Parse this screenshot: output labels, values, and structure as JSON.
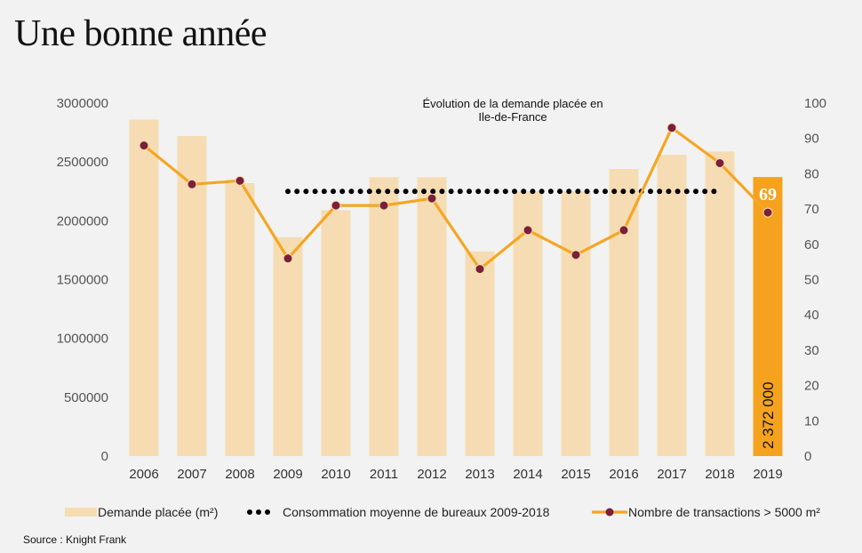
{
  "page": {
    "title": "Une bonne année",
    "source": "Source : Knight Frank"
  },
  "chart_data": {
    "type": "bar",
    "title": "Évolution de la demande placée en Ile-de-France",
    "title_lines": [
      "Évolution de la demande placée en",
      "Ile-de-France"
    ],
    "categories": [
      "2006",
      "2007",
      "2008",
      "2009",
      "2010",
      "2011",
      "2012",
      "2013",
      "2014",
      "2015",
      "2016",
      "2017",
      "2018",
      "2019"
    ],
    "y_left": {
      "min": 0,
      "max": 3000000,
      "ticks": [
        "0",
        "500000",
        "1000000",
        "1500000",
        "2000000",
        "2500000",
        "3000000"
      ]
    },
    "y_right": {
      "min": 0,
      "max": 100,
      "ticks": [
        "0",
        "10",
        "20",
        "30",
        "40",
        "50",
        "60",
        "70",
        "80",
        "90",
        "100"
      ]
    },
    "series": [
      {
        "name": "Demande placée (m²)",
        "kind": "bar",
        "axis": "left",
        "color": "#f5dcb2",
        "highlight_color": "#f5a21e",
        "values": [
          2860000,
          2720000,
          2320000,
          1860000,
          2090000,
          2370000,
          2370000,
          1740000,
          2250000,
          2250000,
          2440000,
          2560000,
          2590000,
          2372000
        ]
      },
      {
        "name": "Consommation moyenne de bureaux 2009-2018",
        "kind": "dotted-line",
        "axis": "right",
        "color": "#000000",
        "x_range": [
          "2009",
          "2018"
        ],
        "value": 75
      },
      {
        "name": "Nombre de transactions > 5000 m²",
        "kind": "line",
        "axis": "right",
        "color": "#f5a623",
        "marker_color": "#7b1f3a",
        "values": [
          88,
          77,
          78,
          56,
          71,
          71,
          73,
          53,
          64,
          57,
          64,
          93,
          83,
          69
        ]
      }
    ],
    "annotations": {
      "bar_2019_label": "2 372 000",
      "point_2019_label": "69"
    },
    "legend_position": "bottom",
    "grid": false
  }
}
